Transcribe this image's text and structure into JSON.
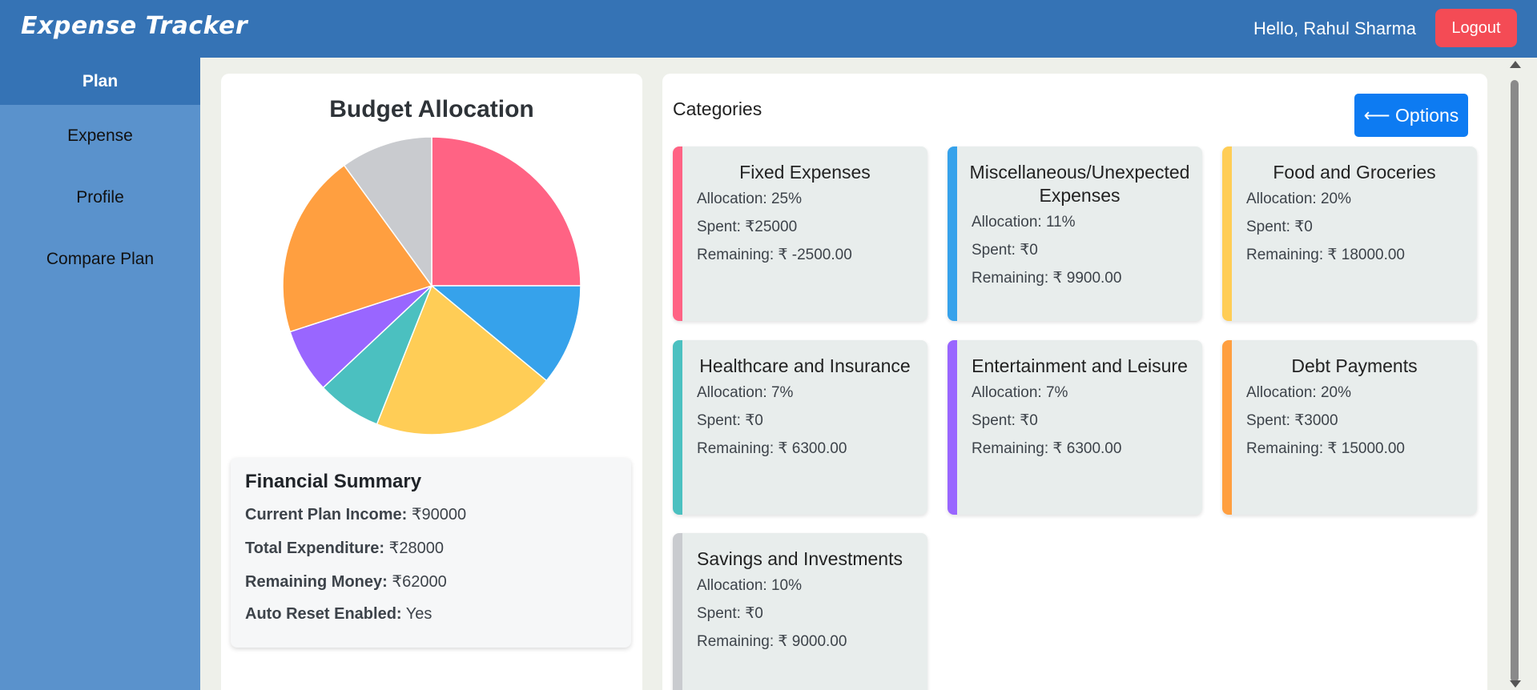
{
  "app": {
    "title": "Expense Tracker",
    "greeting": "Hello, Rahul Sharma",
    "logout_label": "Logout"
  },
  "sidebar": {
    "items": [
      {
        "label": "Plan",
        "active": true
      },
      {
        "label": "Expense"
      },
      {
        "label": "Profile"
      },
      {
        "label": "Compare Plan"
      }
    ]
  },
  "budget": {
    "title": "Budget Allocation"
  },
  "chart_data": {
    "type": "pie",
    "title": "Budget Allocation",
    "categories": [
      "Fixed Expenses",
      "Miscellaneous/Unexpected Expenses",
      "Food and Groceries",
      "Healthcare and Insurance",
      "Entertainment and Leisure",
      "Debt Payments",
      "Savings and Investments"
    ],
    "values": [
      25,
      11,
      20,
      7,
      7,
      20,
      10
    ],
    "colors": [
      "#ff6384",
      "#36a2eb",
      "#ffcd56",
      "#4bc0c0",
      "#9966ff",
      "#ff9f40",
      "#c9cbcf"
    ]
  },
  "summary": {
    "title": "Financial Summary",
    "rows": [
      {
        "label": "Current Plan Income:",
        "value": "₹90000"
      },
      {
        "label": "Total Expenditure:",
        "value": "₹28000"
      },
      {
        "label": "Remaining Money:",
        "value": "₹62000"
      },
      {
        "label": "Auto Reset Enabled:",
        "value": "Yes"
      }
    ]
  },
  "categories": {
    "heading": "Categories",
    "options_label": "⟵ Options",
    "cards": [
      {
        "name": "Fixed Expenses",
        "allocation": "Allocation: 25%",
        "spent": "Spent: ₹25000",
        "remaining": "Remaining: ₹ -2500.00",
        "color": "#ff6384"
      },
      {
        "name": "Miscellaneous/Unexpected Expenses",
        "allocation": "Allocation: 11%",
        "spent": "Spent: ₹0",
        "remaining": "Remaining: ₹ 9900.00",
        "color": "#36a2eb"
      },
      {
        "name": "Food and Groceries",
        "allocation": "Allocation: 20%",
        "spent": "Spent: ₹0",
        "remaining": "Remaining: ₹ 18000.00",
        "color": "#ffcd56"
      },
      {
        "name": "Healthcare and Insurance",
        "allocation": "Allocation: 7%",
        "spent": "Spent: ₹0",
        "remaining": "Remaining: ₹ 6300.00",
        "color": "#4bc0c0"
      },
      {
        "name": "Entertainment and Leisure",
        "allocation": "Allocation: 7%",
        "spent": "Spent: ₹0",
        "remaining": "Remaining: ₹ 6300.00",
        "color": "#9966ff"
      },
      {
        "name": "Debt Payments",
        "allocation": "Allocation: 20%",
        "spent": "Spent: ₹3000",
        "remaining": "Remaining: ₹ 15000.00",
        "color": "#ff9f40"
      },
      {
        "name": "Savings and Investments",
        "allocation": "Allocation: 10%",
        "spent": "Spent: ₹0",
        "remaining": "Remaining: ₹ 9000.00",
        "color": "#c9cbcf"
      }
    ]
  }
}
